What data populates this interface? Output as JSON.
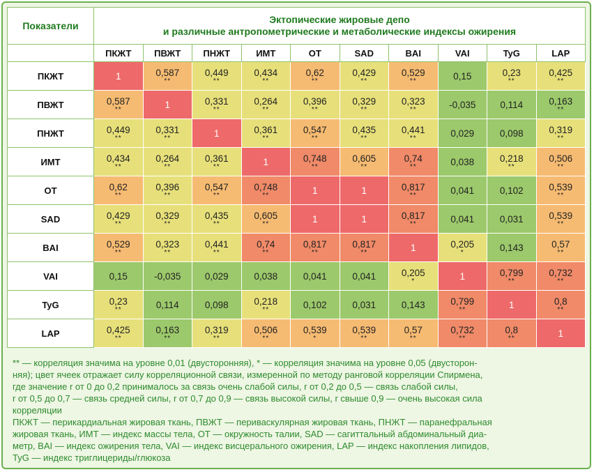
{
  "chart_data": {
    "type": "heatmap",
    "title": "Эктопические жировые депо\nи различные антропометрические и метаболические индексы ожирения",
    "row_header_label": "Показатели",
    "rows": [
      "ПКЖТ",
      "ПВЖТ",
      "ПНЖТ",
      "ИМТ",
      "ОТ",
      "SAD",
      "BAI",
      "VAI",
      "TyG",
      "LAP"
    ],
    "columns": [
      "ПКЖТ",
      "ПВЖТ",
      "ПНЖТ",
      "ИМТ",
      "ОТ",
      "SAD",
      "BAI",
      "VAI",
      "TyG",
      "LAP"
    ],
    "values": [
      [
        "1",
        "0,587",
        "0,449",
        "0,434",
        "0,62",
        "0,429",
        "0,529",
        "0,15",
        "0,23",
        "0,425"
      ],
      [
        "0,587",
        "1",
        "0,331",
        "0,264",
        "0,396",
        "0,329",
        "0,323",
        "-0,035",
        "0,114",
        "0,163"
      ],
      [
        "0,449",
        "0,331",
        "1",
        "0,361",
        "0,547",
        "0,435",
        "0,441",
        "0,029",
        "0,098",
        "0,319"
      ],
      [
        "0,434",
        "0,264",
        "0,361",
        "1",
        "0,748",
        "0,605",
        "0,74",
        "0,038",
        "0,218",
        "0,506"
      ],
      [
        "0,62",
        "0,396",
        "0,547",
        "0,748",
        "1",
        "1",
        "0,817",
        "0,041",
        "0,102",
        "0,539"
      ],
      [
        "0,429",
        "0,329",
        "0,435",
        "0,605",
        "1",
        "1",
        "0,817",
        "0,041",
        "0,031",
        "0,539"
      ],
      [
        "0,529",
        "0,323",
        "0,441",
        "0,74",
        "0,817",
        "0,817",
        "1",
        "0,205",
        "0,143",
        "0,57"
      ],
      [
        "0,15",
        "-0,035",
        "0,029",
        "0,038",
        "0,041",
        "0,041",
        "0,205",
        "1",
        "0,799",
        "0,732"
      ],
      [
        "0,23",
        "0,114",
        "0,098",
        "0,218",
        "0,102",
        "0,031",
        "0,143",
        "0,799",
        "1",
        "0,8"
      ],
      [
        "0,425",
        "0,163",
        "0,319",
        "0,506",
        "0,539",
        "0,539",
        "0,57",
        "0,732",
        "0,8",
        "1"
      ]
    ],
    "significance": [
      [
        "",
        "**",
        "**",
        "**",
        "**",
        "**",
        "**",
        "",
        "**",
        "**"
      ],
      [
        "**",
        "",
        "**",
        "**",
        "**",
        "**",
        "**",
        "",
        "",
        "**"
      ],
      [
        "**",
        "**",
        "",
        "**",
        "**",
        "**",
        "**",
        "",
        "",
        "**"
      ],
      [
        "**",
        "**",
        "**",
        "",
        "**",
        "**",
        "**",
        "",
        "**",
        "**"
      ],
      [
        "**",
        "**",
        "**",
        "**",
        "",
        "",
        "**",
        "",
        "",
        "**"
      ],
      [
        "**",
        "**",
        "**",
        "**",
        "",
        "",
        "**",
        "",
        "",
        "**"
      ],
      [
        "**",
        "**",
        "**",
        "**",
        "**",
        "**",
        "",
        "*",
        "",
        "**"
      ],
      [
        "",
        "",
        "",
        "",
        "",
        "",
        "*",
        "",
        "**",
        "**"
      ],
      [
        "**",
        "",
        "",
        "**",
        "",
        "",
        "",
        "**",
        "",
        "**"
      ],
      [
        "**",
        "**",
        "**",
        "**",
        "*",
        "**",
        "**",
        "**",
        "**",
        ""
      ]
    ],
    "color_scale": {
      "very_weak": "#9cc96b",
      "weak": "#e7e07a",
      "moderate": "#f6bb72",
      "high": "#f08a68",
      "very_high": "#ee6a6a"
    }
  },
  "notes": [
    "** — корреляция значима на уровне 0,01 (двусторонняя), * — корреляция значима на уровне 0,05 (двусторон-",
    "няя); цвет ячеек отражает силу корреляционной связи, измеренной по методу ранговой корреляции Спирмена,",
    "где значение r от 0 до 0,2 принималось за связь очень слабой силы, r от 0,2 до 0,5 — связь слабой силы,",
    "r от 0,5 до 0,7 — связь средней силы, r от 0,7 до 0,9 — связь высокой силы, r свыше 0,9 — очень высокая сила",
    "корреляции",
    "ПКЖТ — перикардиальная жировая ткань, ПВЖТ — периваскулярная жировая ткань, ПНЖТ — паранефральная",
    "жировая ткань, ИМТ — индекс массы тела, ОТ — окружность талии, SAD — сагиттальный абдоминальный диа-",
    "метр, BAI — индекс ожирения тела, VAI — индекс висцерального ожирения, LAP — индекс накопления липидов,",
    "TyG — индекс триглицериды/глюкоза"
  ]
}
